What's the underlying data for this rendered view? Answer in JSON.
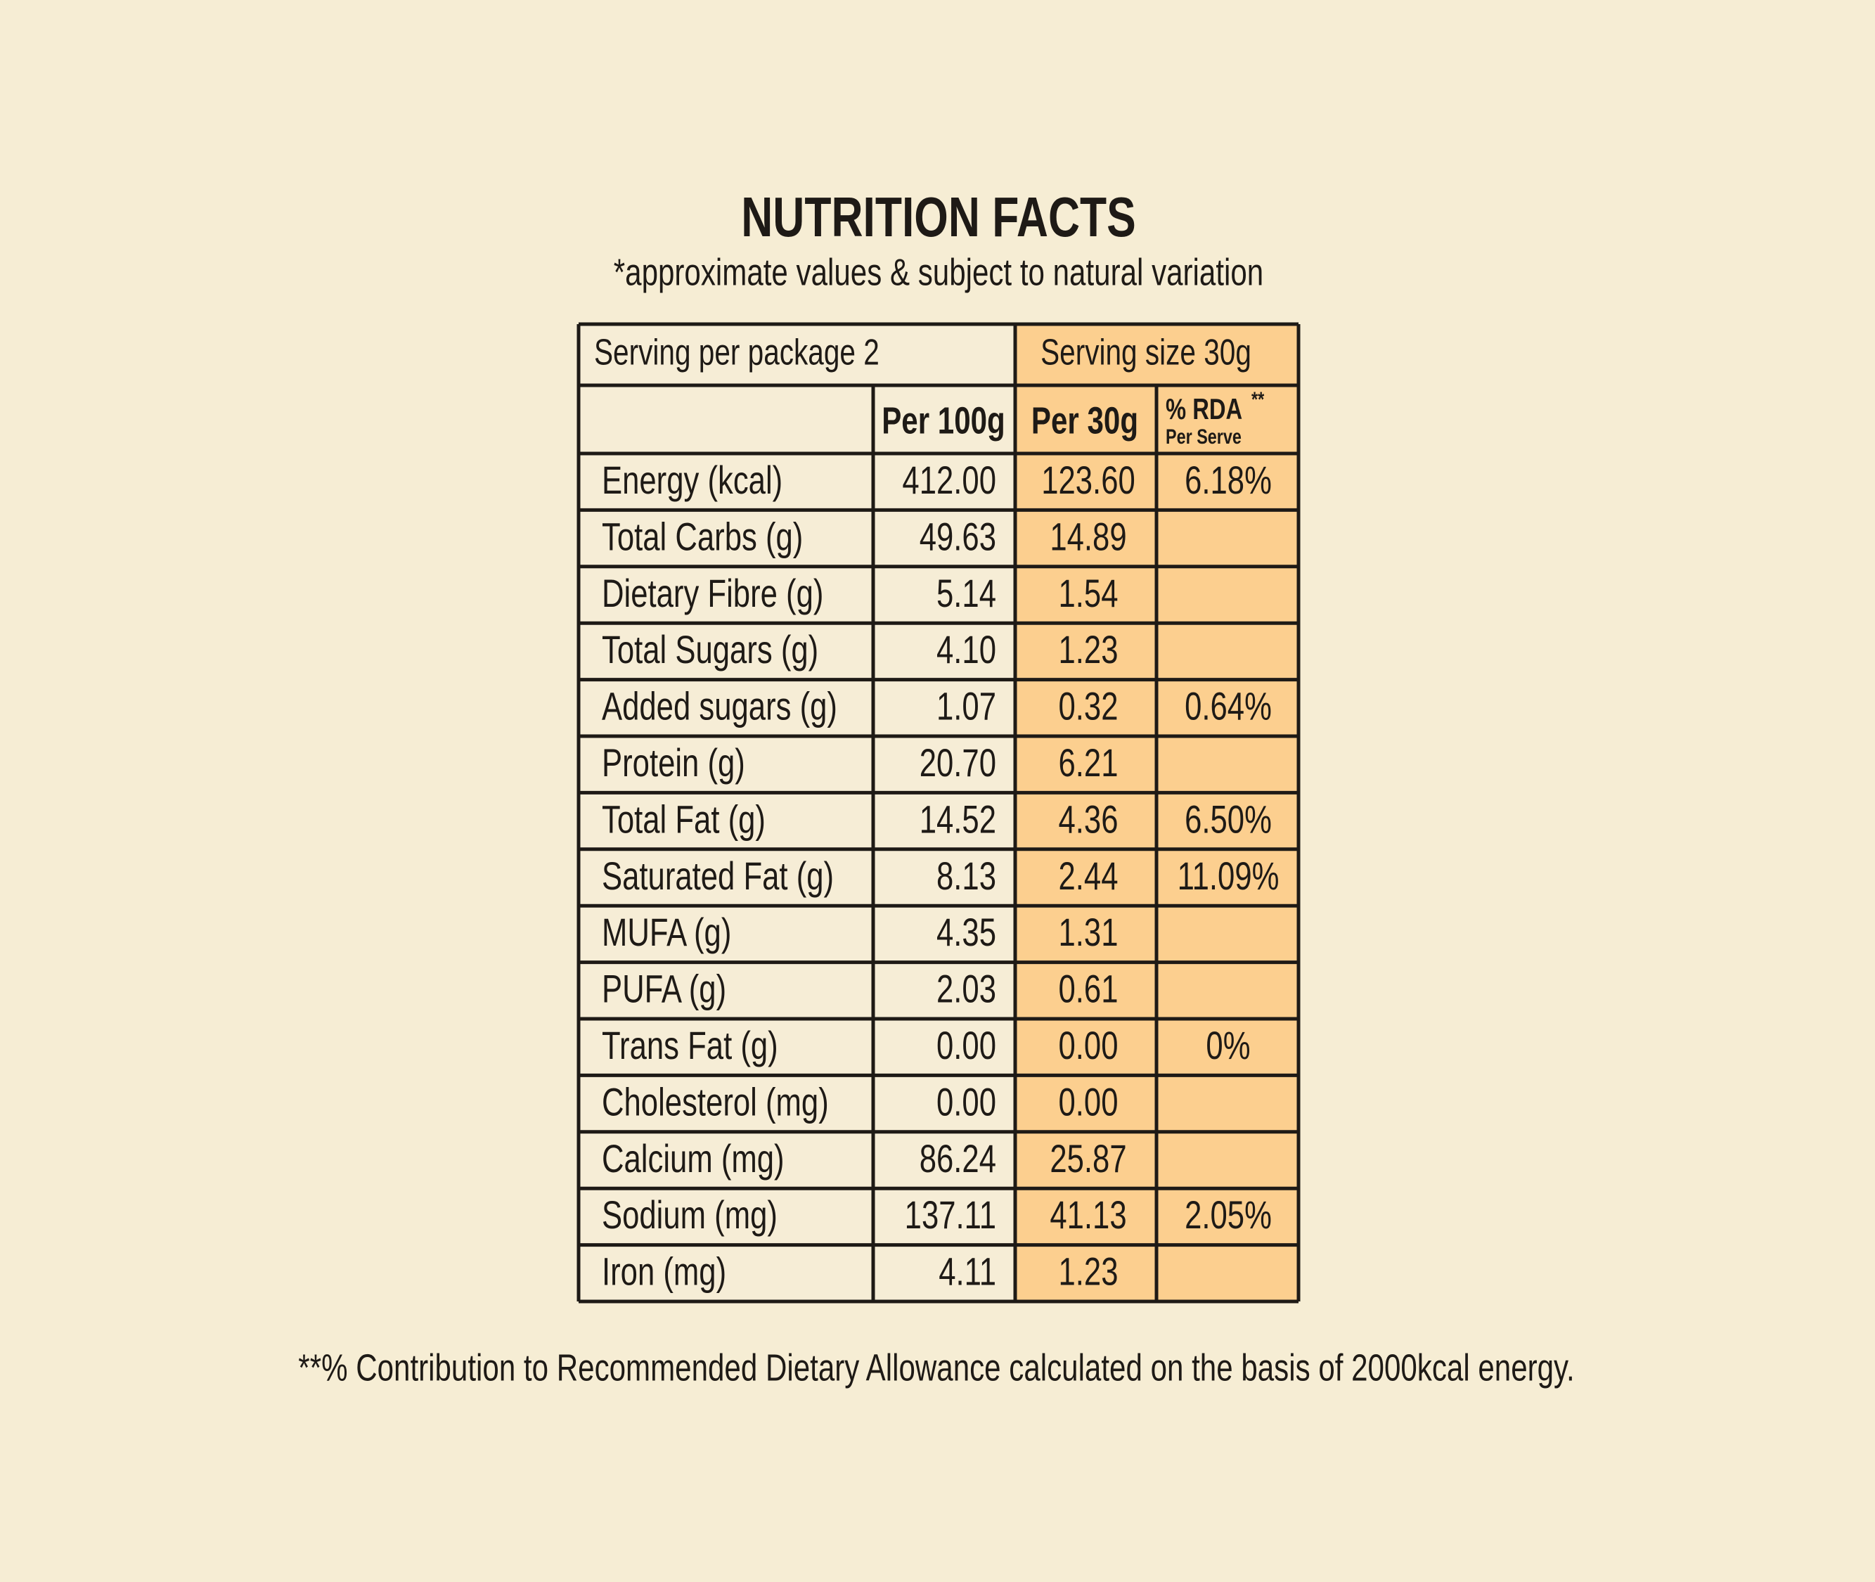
{
  "header": {
    "title": "NUTRITION FACTS",
    "subtitle": "*approximate values & subject to natural variation"
  },
  "table": {
    "serving_per_package": "Serving per package 2",
    "serving_size": "Serving size 30g",
    "columns": {
      "per_100g": "Per 100g",
      "per_30g": "Per 30g",
      "rda": "% RDA",
      "rda_marker": "**",
      "rda_sub": "Per Serve"
    },
    "rows": [
      {
        "name": "Energy (kcal)",
        "per_100g": "412.00",
        "per_30g": "123.60",
        "rda": "6.18%"
      },
      {
        "name": "Total Carbs (g)",
        "per_100g": "49.63",
        "per_30g": "14.89"
      },
      {
        "name": "Dietary Fibre (g)",
        "per_100g": "5.14",
        "per_30g": "1.54"
      },
      {
        "name": "Total Sugars (g)",
        "per_100g": "4.10",
        "per_30g": "1.23"
      },
      {
        "name": "Added sugars (g)",
        "per_100g": "1.07",
        "per_30g": "0.32",
        "rda": "0.64%"
      },
      {
        "name": "Protein (g)",
        "per_100g": "20.70",
        "per_30g": "6.21"
      },
      {
        "name": "Total Fat (g)",
        "per_100g": "14.52",
        "per_30g": "4.36",
        "rda": "6.50%"
      },
      {
        "name": "Saturated Fat (g)",
        "per_100g": "8.13",
        "per_30g": "2.44",
        "rda": "11.09%"
      },
      {
        "name": "MUFA (g)",
        "per_100g": "4.35",
        "per_30g": "1.31"
      },
      {
        "name": "PUFA (g)",
        "per_100g": "2.03",
        "per_30g": "0.61"
      },
      {
        "name": "Trans Fat (g)",
        "per_100g": "0.00",
        "per_30g": "0.00",
        "rda": "0%"
      },
      {
        "name": "Cholesterol (mg)",
        "per_100g": "0.00",
        "per_30g": "0.00"
      },
      {
        "name": "Calcium (mg)",
        "per_100g": "86.24",
        "per_30g": "25.87"
      },
      {
        "name": "Sodium (mg)",
        "per_100g": "137.11",
        "per_30g": "41.13",
        "rda": "2.05%"
      },
      {
        "name": "Iron (mg)",
        "per_100g": "4.11",
        "per_30g": "1.23"
      }
    ]
  },
  "footnote": "**% Contribution to Recommended Dietary Allowance calculated on the basis of 2000kcal energy."
}
